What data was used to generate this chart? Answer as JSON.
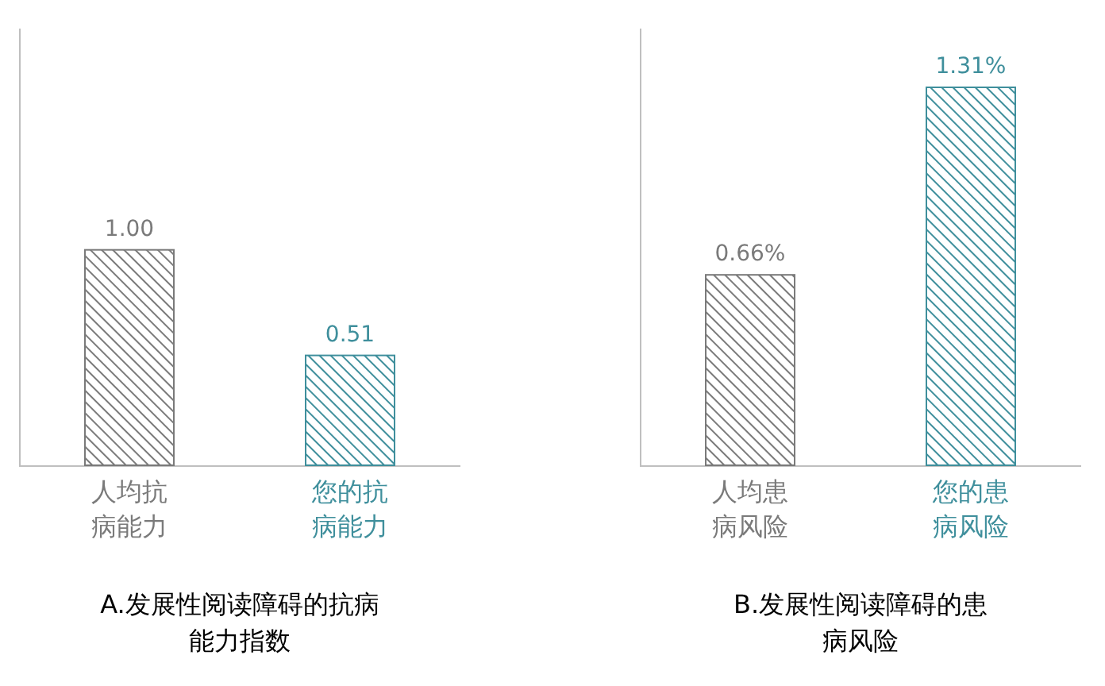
{
  "chart_data": [
    {
      "type": "bar",
      "title": "A.发展性阅读障碍的抗病能力指数",
      "categories": [
        "人均抗病能力",
        "您的抗病能力"
      ],
      "values": [
        1.0,
        0.51
      ],
      "value_labels": [
        "1.00",
        "0.51"
      ],
      "colors": [
        "#7a7a7a",
        "#3f8f9c"
      ]
    },
    {
      "type": "bar",
      "title": "B.发展性阅读障碍的患病风险",
      "categories": [
        "人均患病风险",
        "您的患病风险"
      ],
      "values": [
        0.66,
        1.31
      ],
      "value_labels": [
        "0.66%",
        "1.31%"
      ],
      "colors": [
        "#7a7a7a",
        "#3f8f9c"
      ]
    }
  ]
}
